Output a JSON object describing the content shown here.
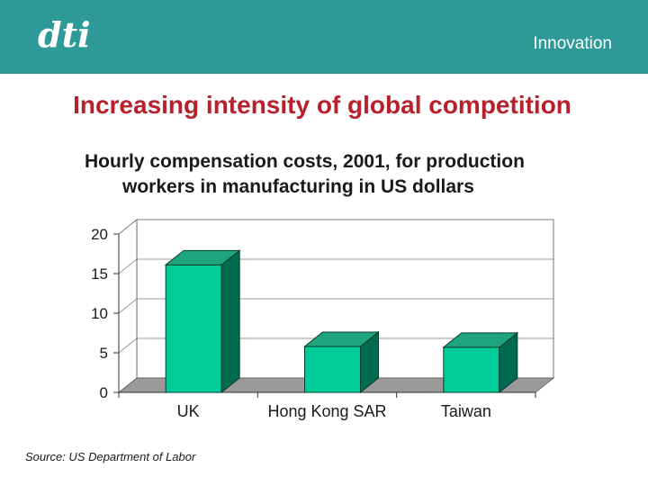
{
  "header": {
    "logo_text": "dti",
    "section": "Innovation",
    "bg_color": "#2e9a98"
  },
  "slide": {
    "title": "Increasing intensity of global competition",
    "subtitle_line1": "Hourly compensation costs, 2001, for production",
    "subtitle_line2": "workers in manufacturing in US dollars",
    "source": "Source: US Department of Labor"
  },
  "chart_data": {
    "type": "bar",
    "title": "",
    "xlabel": "",
    "ylabel": "",
    "categories": [
      "UK",
      "Hong Kong SAR",
      "Taiwan"
    ],
    "values": [
      16.1,
      5.8,
      5.7
    ],
    "ylim": [
      0,
      20
    ],
    "yticks": [
      0,
      5,
      10,
      15,
      20
    ],
    "grid": true,
    "bar_color": "#00cc99",
    "bar_side_color": "#006b50",
    "bar_top_color": "#1fa57e",
    "floor_color": "#9a9a9a"
  }
}
